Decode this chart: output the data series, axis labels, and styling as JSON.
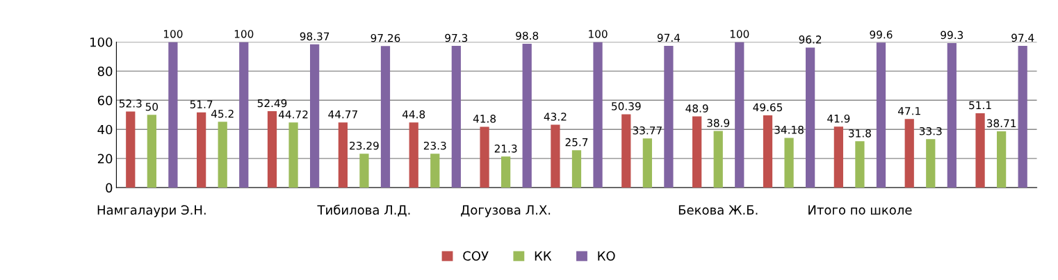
{
  "chart_data": {
    "type": "bar",
    "categories": [
      "Намгалаури Э.Н.",
      null,
      null,
      "Тибилова Л.Д.",
      null,
      "Догузова Л.Х.",
      null,
      null,
      "Бекова Ж.Б.",
      null,
      "Итого по школе",
      null,
      null
    ],
    "series": [
      {
        "name": "СОУ",
        "color": "#c0504d",
        "values": [
          52.3,
          51.7,
          52.49,
          44.77,
          44.8,
          41.8,
          43.2,
          50.39,
          48.9,
          49.65,
          41.9,
          47.1,
          51.1
        ]
      },
      {
        "name": "КК",
        "color": "#9bbb59",
        "values": [
          50,
          45.2,
          44.72,
          23.29,
          23.3,
          21.3,
          25.7,
          33.77,
          38.9,
          34.18,
          31.8,
          33.3,
          38.71
        ]
      },
      {
        "name": "КО",
        "color": "#8064a2",
        "values": [
          100,
          100,
          98.37,
          97.26,
          97.3,
          98.8,
          100,
          97.4,
          100,
          96.2,
          99.6,
          99.3,
          97.4
        ]
      }
    ],
    "ylim": [
      0,
      100
    ],
    "yticks": [
      0,
      20,
      40,
      60,
      80,
      100
    ],
    "grid": "y",
    "legend": "bottom",
    "data_labels": true
  }
}
